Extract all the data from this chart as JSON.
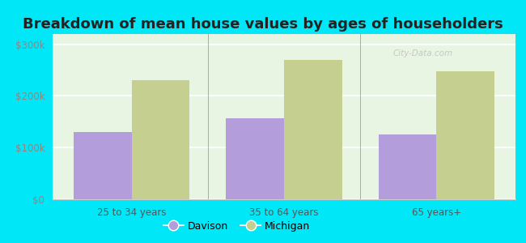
{
  "title": "Breakdown of mean house values by ages of householders",
  "categories": [
    "25 to 34 years",
    "35 to 64 years",
    "65 years+"
  ],
  "davison_values": [
    130000,
    157000,
    125000
  ],
  "michigan_values": [
    230000,
    270000,
    248000
  ],
  "davison_color": "#b39ddb",
  "michigan_color": "#c5cf90",
  "background_outer": "#00e8f8",
  "background_inner_color": "#e8f5e3",
  "ylim": [
    0,
    320000
  ],
  "yticks": [
    0,
    100000,
    200000,
    300000
  ],
  "ytick_labels": [
    "$0",
    "$100k",
    "$200k",
    "$300k"
  ],
  "legend_davison": "Davison",
  "legend_michigan": "Michigan",
  "title_fontsize": 13,
  "bar_width": 0.38
}
